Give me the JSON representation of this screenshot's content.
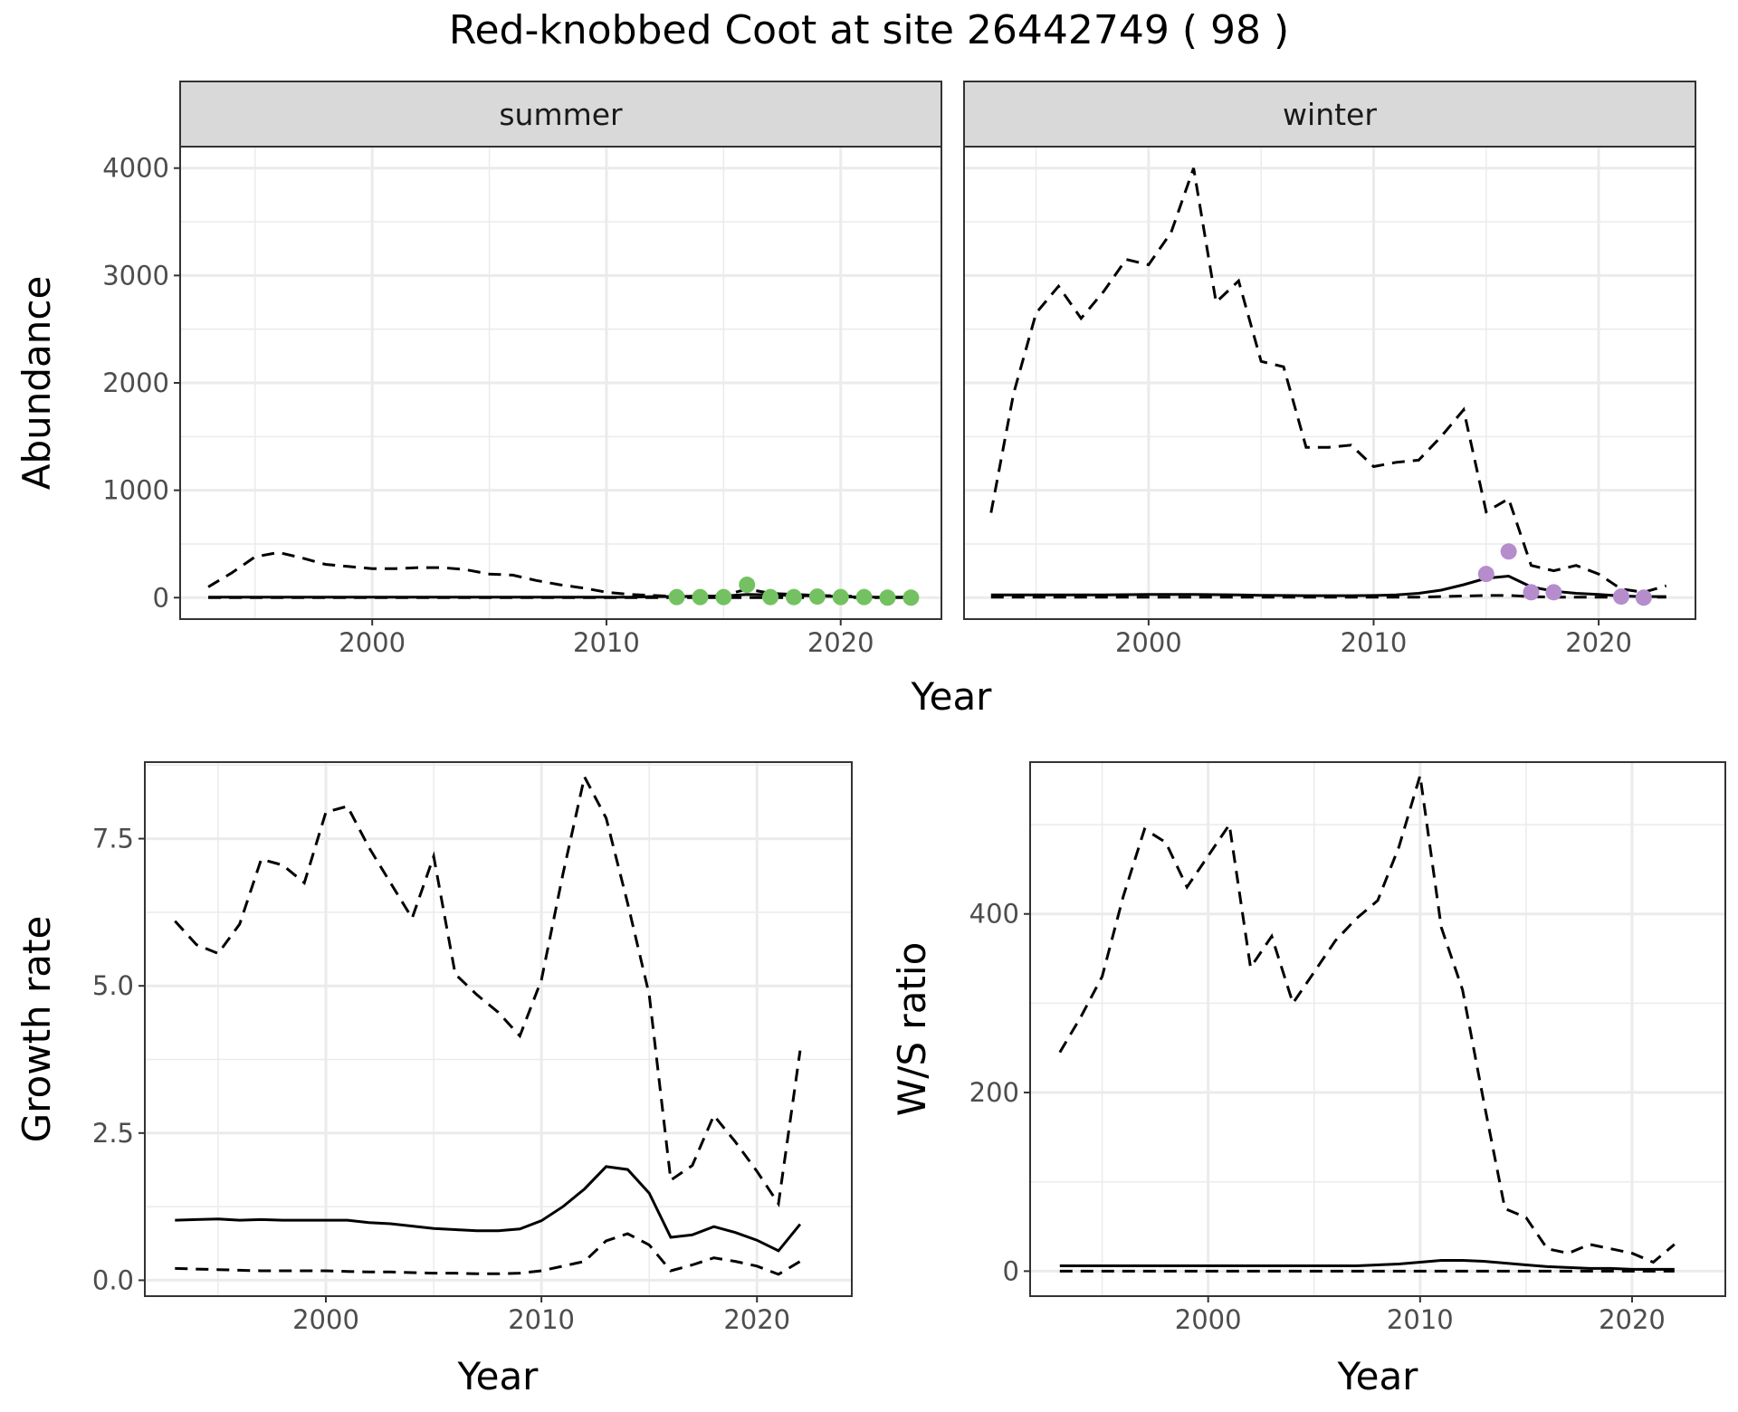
{
  "figure": {
    "title": "Red-knobbed Coot at site 26442749 ( 98 )"
  },
  "colors": {
    "summer_points": "#74c162",
    "winter_points": "#b58ccc",
    "line": "#000000",
    "strip": "#d9d9d9",
    "grid": "#ebebeb"
  },
  "chart_data": [
    {
      "type": "line",
      "panel": "abundance",
      "facet_label": "summer",
      "xlabel": "Year",
      "ylabel": "Abundance",
      "xlim": [
        1991.8,
        2024.3
      ],
      "ylim": [
        -200,
        4200
      ],
      "xticks": [
        2000,
        2010,
        2020
      ],
      "yticks": [
        0,
        1000,
        2000,
        3000,
        4000
      ],
      "x": [
        1993,
        1994,
        1995,
        1996,
        1997,
        1998,
        1999,
        2000,
        2001,
        2002,
        2003,
        2004,
        2005,
        2006,
        2007,
        2008,
        2009,
        2010,
        2011,
        2012,
        2013,
        2014,
        2015,
        2016,
        2017,
        2018,
        2019,
        2020,
        2021,
        2022,
        2023
      ],
      "median": [
        5,
        5,
        5,
        5,
        5,
        5,
        5,
        5,
        5,
        5,
        5,
        5,
        5,
        5,
        5,
        5,
        5,
        5,
        5,
        10,
        10,
        15,
        15,
        30,
        25,
        20,
        15,
        10,
        5,
        5,
        5
      ],
      "upper": [
        100,
        230,
        380,
        420,
        370,
        310,
        290,
        270,
        270,
        280,
        280,
        260,
        220,
        210,
        160,
        120,
        90,
        50,
        30,
        20,
        10,
        10,
        20,
        80,
        40,
        30,
        20,
        15,
        10,
        5,
        5
      ],
      "lower": [
        0,
        0,
        0,
        0,
        0,
        0,
        0,
        0,
        0,
        0,
        0,
        0,
        0,
        0,
        0,
        0,
        0,
        0,
        0,
        0,
        0,
        0,
        0,
        0,
        0,
        0,
        0,
        0,
        0,
        0,
        0
      ],
      "points": {
        "x": [
          2013,
          2014,
          2015,
          2016,
          2017,
          2018,
          2019,
          2020,
          2021,
          2022,
          2023
        ],
        "y": [
          5,
          5,
          5,
          120,
          5,
          5,
          10,
          5,
          5,
          0,
          0
        ]
      }
    },
    {
      "type": "line",
      "panel": "abundance",
      "facet_label": "winter",
      "xlabel": "Year",
      "ylabel": "Abundance",
      "xlim": [
        1991.8,
        2024.3
      ],
      "ylim": [
        -200,
        4200
      ],
      "xticks": [
        2000,
        2010,
        2020
      ],
      "yticks": [
        0,
        1000,
        2000,
        3000,
        4000
      ],
      "x": [
        1993,
        1994,
        1995,
        1996,
        1997,
        1998,
        1999,
        2000,
        2001,
        2002,
        2003,
        2004,
        2005,
        2006,
        2007,
        2008,
        2009,
        2010,
        2011,
        2012,
        2013,
        2014,
        2015,
        2016,
        2017,
        2018,
        2019,
        2020,
        2021,
        2022,
        2023
      ],
      "median": [
        25,
        25,
        25,
        25,
        25,
        25,
        28,
        30,
        30,
        30,
        28,
        25,
        22,
        20,
        18,
        18,
        18,
        20,
        25,
        40,
        70,
        120,
        180,
        200,
        100,
        60,
        40,
        30,
        15,
        10,
        10
      ],
      "upper": [
        790,
        1900,
        2650,
        2900,
        2600,
        2850,
        3150,
        3100,
        3400,
        4000,
        2750,
        2950,
        2200,
        2150,
        1400,
        1400,
        1420,
        1220,
        1260,
        1280,
        1500,
        1750,
        800,
        920,
        300,
        250,
        300,
        220,
        80,
        50,
        110
      ],
      "lower": [
        5,
        5,
        5,
        5,
        5,
        5,
        5,
        5,
        5,
        5,
        5,
        5,
        5,
        5,
        5,
        5,
        5,
        5,
        5,
        5,
        10,
        15,
        20,
        20,
        10,
        5,
        5,
        5,
        5,
        5,
        5
      ],
      "points": {
        "x": [
          2015,
          2016,
          2017,
          2018,
          2021,
          2022
        ],
        "y": [
          220,
          430,
          50,
          50,
          10,
          0
        ]
      }
    },
    {
      "type": "line",
      "panel": "growth",
      "xlabel": "Year",
      "ylabel": "Growth rate",
      "xlim": [
        1991.6,
        2024.4
      ],
      "ylim": [
        -0.27,
        8.8
      ],
      "xticks": [
        2000,
        2010,
        2020
      ],
      "yticks": [
        "0.0",
        "2.5",
        "5.0",
        "7.5"
      ],
      "ytick_values": [
        0,
        2.5,
        5.0,
        7.5
      ],
      "x": [
        1993,
        1994,
        1995,
        1996,
        1997,
        1998,
        1999,
        2000,
        2001,
        2002,
        2003,
        2004,
        2005,
        2006,
        2007,
        2008,
        2009,
        2010,
        2011,
        2012,
        2013,
        2014,
        2015,
        2016,
        2017,
        2018,
        2019,
        2020,
        2021,
        2022
      ],
      "median": [
        1.02,
        1.03,
        1.04,
        1.02,
        1.03,
        1.02,
        1.02,
        1.02,
        1.02,
        0.98,
        0.96,
        0.92,
        0.88,
        0.86,
        0.84,
        0.84,
        0.87,
        1.01,
        1.25,
        1.55,
        1.93,
        1.88,
        1.48,
        0.73,
        0.77,
        0.91,
        0.81,
        0.68,
        0.5,
        0.95
      ],
      "upper": [
        6.1,
        5.7,
        5.55,
        6.05,
        7.15,
        7.05,
        6.75,
        7.95,
        8.05,
        7.35,
        6.75,
        6.15,
        7.2,
        5.2,
        4.85,
        4.55,
        4.15,
        5.1,
        6.9,
        8.55,
        7.85,
        6.4,
        4.85,
        1.7,
        1.95,
        2.8,
        2.35,
        1.85,
        1.3,
        3.9
      ],
      "lower": [
        0.2,
        0.19,
        0.18,
        0.17,
        0.16,
        0.16,
        0.16,
        0.16,
        0.15,
        0.14,
        0.14,
        0.13,
        0.12,
        0.12,
        0.11,
        0.11,
        0.12,
        0.16,
        0.24,
        0.32,
        0.67,
        0.79,
        0.6,
        0.16,
        0.26,
        0.38,
        0.32,
        0.24,
        0.1,
        0.32
      ]
    },
    {
      "type": "line",
      "panel": "ratio",
      "xlabel": "Year",
      "ylabel": "W/S ratio",
      "xlim": [
        1991.6,
        2024.4
      ],
      "ylim": [
        -28,
        570
      ],
      "xticks": [
        2000,
        2010,
        2020
      ],
      "yticks": [
        0,
        200,
        400
      ],
      "x": [
        1993,
        1994,
        1995,
        1996,
        1997,
        1998,
        1999,
        2000,
        2001,
        2002,
        2003,
        2004,
        2005,
        2006,
        2007,
        2008,
        2009,
        2010,
        2011,
        2012,
        2013,
        2014,
        2015,
        2016,
        2017,
        2018,
        2019,
        2020,
        2021,
        2022
      ],
      "median": [
        6,
        6,
        6,
        6,
        6,
        6,
        6,
        6,
        6,
        6,
        6,
        6,
        6,
        6,
        6,
        7,
        8,
        10,
        12,
        12,
        11,
        9,
        7,
        5,
        4,
        3,
        3,
        2,
        2,
        2
      ],
      "upper": [
        245,
        285,
        330,
        420,
        495,
        480,
        430,
        465,
        500,
        340,
        375,
        300,
        335,
        370,
        395,
        415,
        475,
        555,
        385,
        315,
        190,
        70,
        60,
        25,
        20,
        30,
        25,
        20,
        10,
        30
      ],
      "lower": [
        0,
        0,
        0,
        0,
        0,
        0,
        0,
        0,
        0,
        0,
        0,
        0,
        0,
        0,
        0,
        0,
        0,
        0,
        0,
        0,
        0,
        0,
        0,
        0,
        0,
        0,
        0,
        0,
        0,
        0
      ]
    }
  ]
}
